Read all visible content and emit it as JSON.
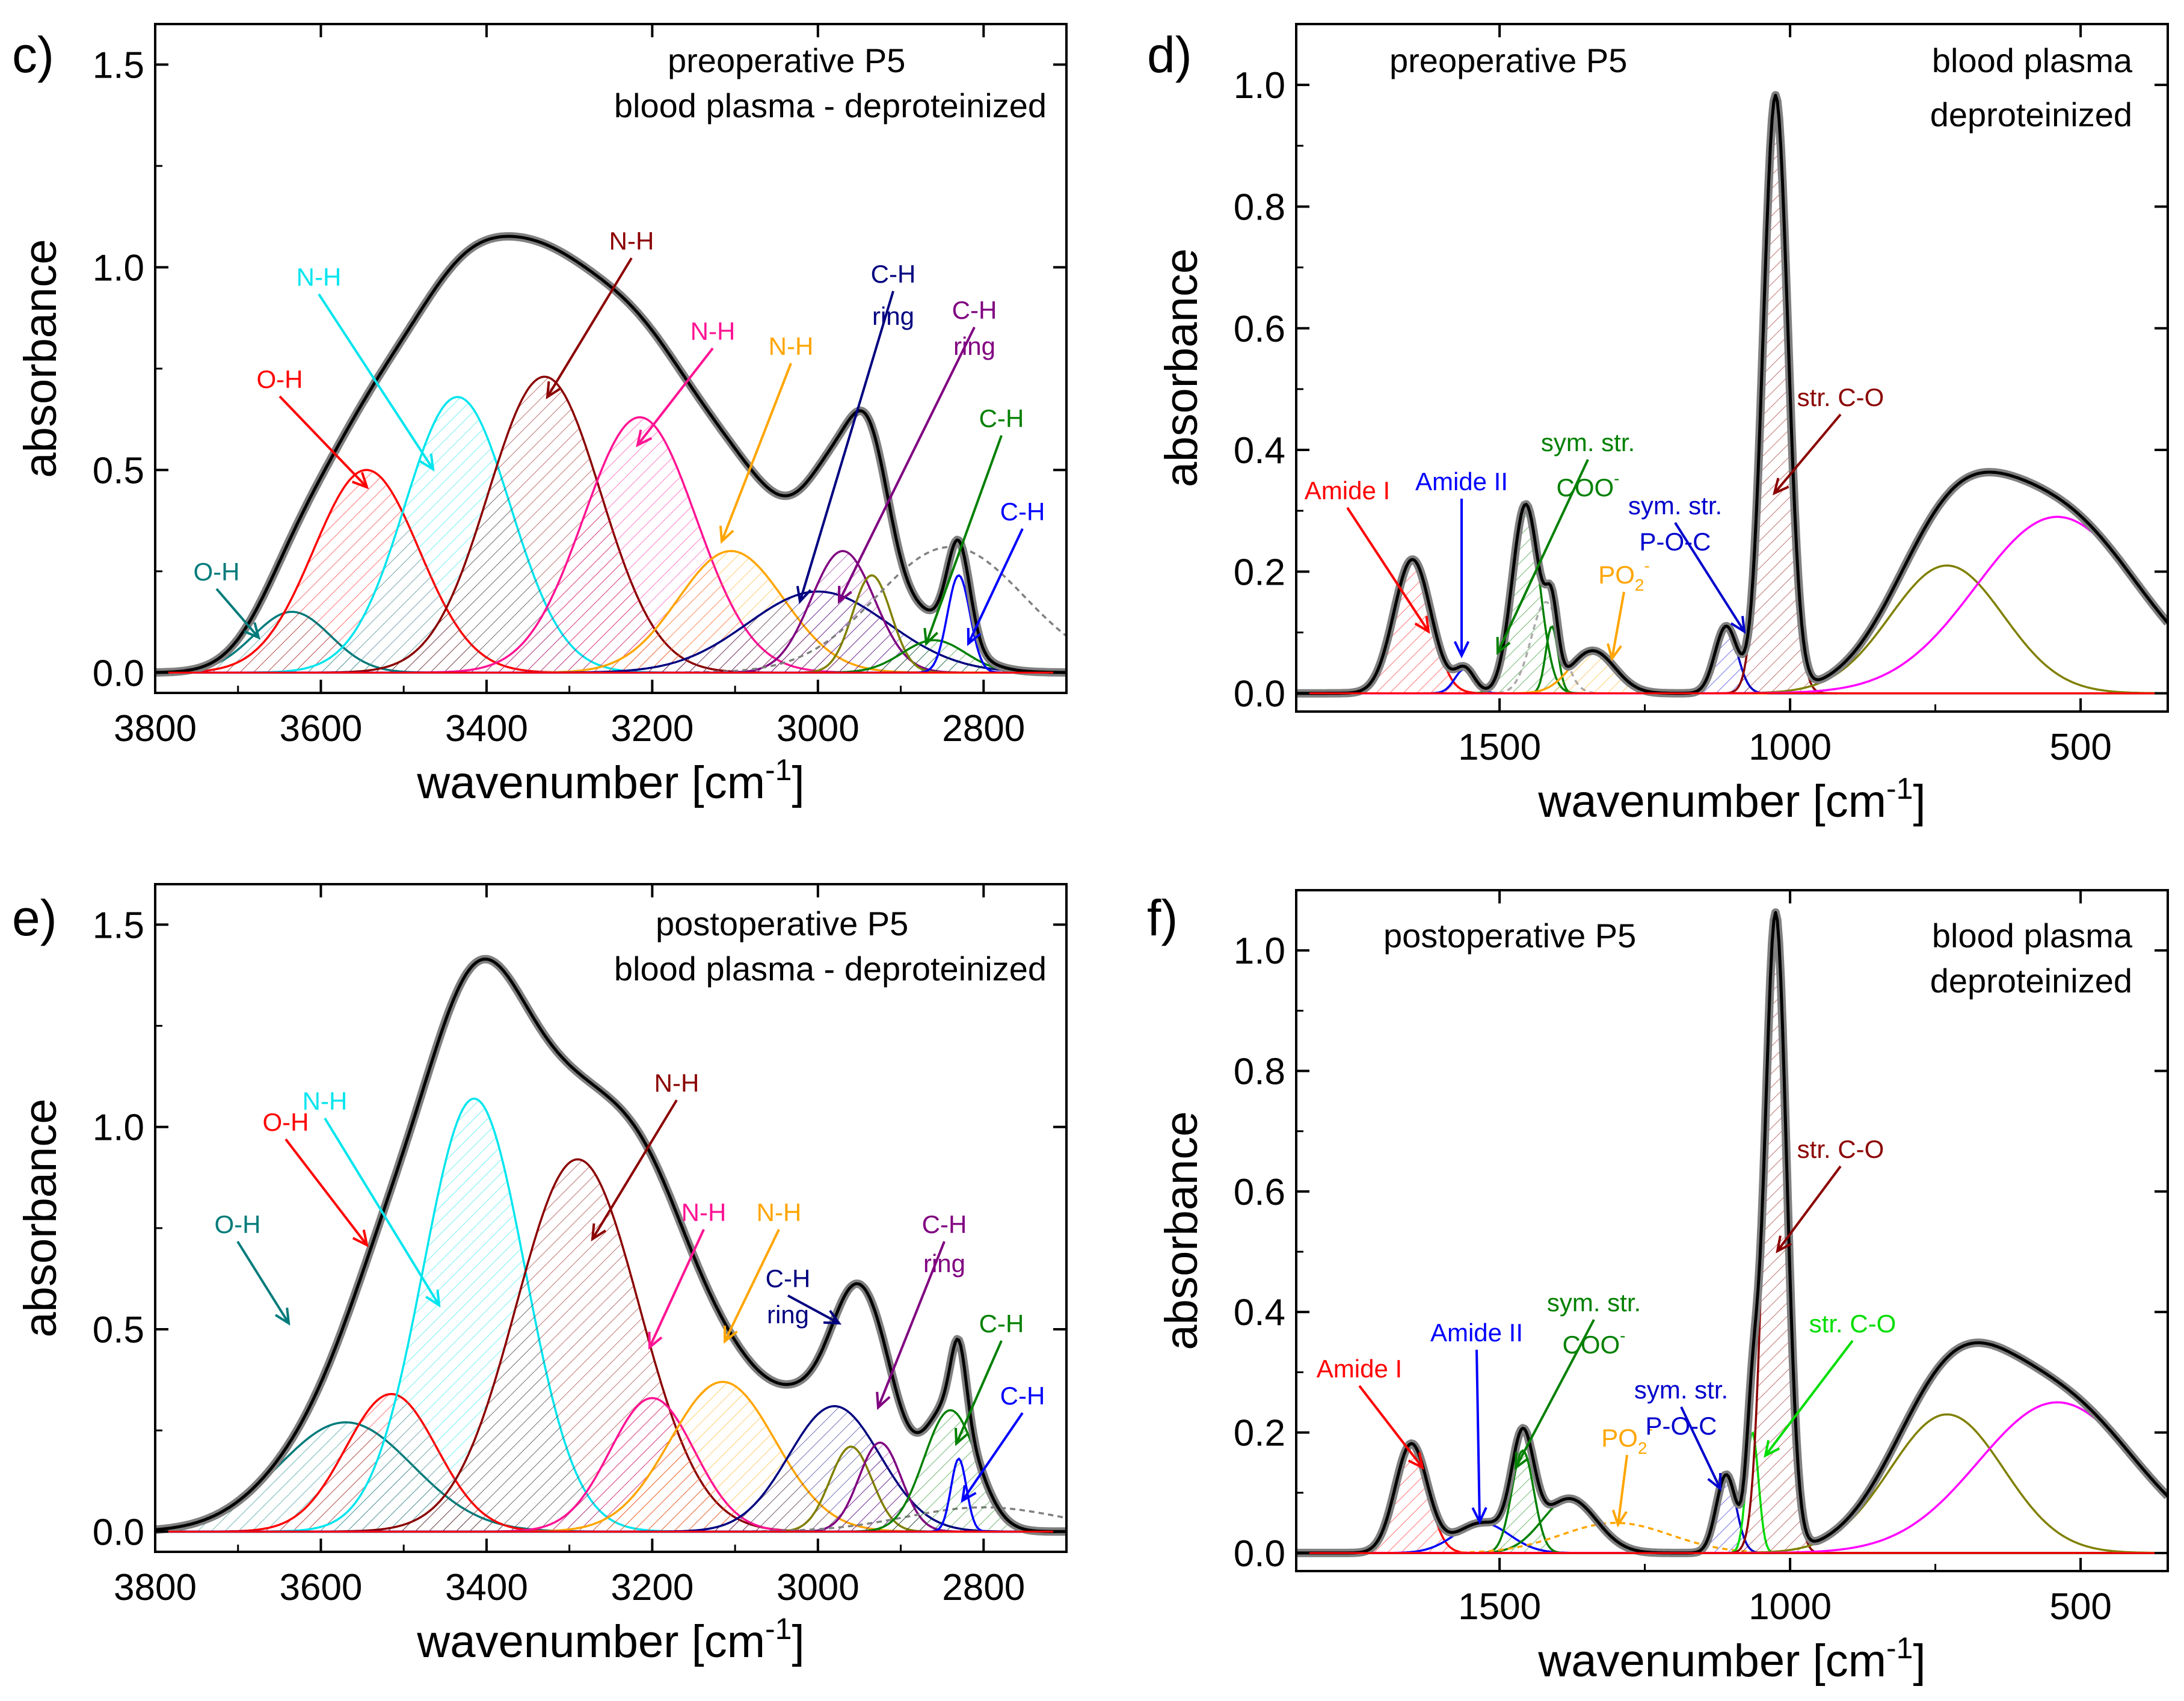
{
  "chart_data": [
    {
      "type": "line",
      "panel_label": "c)",
      "title": "preoperative P5",
      "subtitle": "blood plasma - deproteinized",
      "xlabel": "wavenumber [cm",
      "xlabel_sup": "-1",
      "xlabel_end": "]",
      "ylabel": "absorbance",
      "xlim": [
        3800,
        2700
      ],
      "ylim": [
        -0.05,
        1.6
      ],
      "xticks": [
        3800,
        3600,
        3400,
        3200,
        3000,
        2800
      ],
      "xtick_labels": [
        "3800",
        "3600",
        "3400",
        "3200",
        "3000",
        "2800"
      ],
      "yticks": [
        0.0,
        0.5,
        1.0,
        1.5
      ],
      "ytick_labels": [
        "0.0",
        "0.5",
        "1.0",
        "1.5"
      ],
      "series": [
        {
          "name": "O-H",
          "color": "#007b7b",
          "center": 3635,
          "height": 0.15,
          "fwhm": 110,
          "hatch": true
        },
        {
          "name": "O-H",
          "color": "#ff0000",
          "center": 3545,
          "height": 0.5,
          "fwhm": 150,
          "hatch": true
        },
        {
          "name": "N-H",
          "color": "#00e5ee",
          "center": 3435,
          "height": 0.68,
          "fwhm": 150,
          "hatch": true
        },
        {
          "name": "N-H",
          "color": "#8b0000",
          "center": 3330,
          "height": 0.73,
          "fwhm": 160,
          "hatch": true
        },
        {
          "name": "N-H",
          "color": "#ff1493",
          "center": 3215,
          "height": 0.63,
          "fwhm": 160,
          "hatch": true
        },
        {
          "name": "N-H",
          "color": "#ffa500",
          "center": 3105,
          "height": 0.3,
          "fwhm": 150,
          "hatch": true
        },
        {
          "name": "C-H ring",
          "color": "#000080",
          "center": 3000,
          "height": 0.2,
          "fwhm": 200,
          "hatch": true
        },
        {
          "name": "C-H ring",
          "color": "#800080",
          "center": 2970,
          "height": 0.3,
          "fwhm": 90,
          "hatch": true
        },
        {
          "name": "",
          "color": "#808000",
          "center": 2935,
          "height": 0.24,
          "fwhm": 55,
          "hatch": false
        },
        {
          "name": "",
          "color": "#808080",
          "center": 2840,
          "height": 0.31,
          "fwhm": 210,
          "hatch": false,
          "dashed": true
        },
        {
          "name": "C-H",
          "color": "#008000",
          "center": 2860,
          "height": 0.08,
          "fwhm": 90,
          "hatch": true
        },
        {
          "name": "C-H",
          "color": "#0000ff",
          "center": 2830,
          "height": 0.24,
          "fwhm": 32,
          "hatch": false
        }
      ],
      "annotations": [
        {
          "text": "O-H",
          "color": "#007b7b"
        },
        {
          "text": "O-H",
          "color": "#ff0000"
        },
        {
          "text": "N-H",
          "color": "#00e5ee"
        },
        {
          "text": "N-H",
          "color": "#8b0000"
        },
        {
          "text": "N-H",
          "color": "#ff1493"
        },
        {
          "text": "N-H",
          "color": "#ffa500"
        },
        {
          "text": "C-H",
          "color": "#000080"
        },
        {
          "text": "ring",
          "color": "#000080"
        },
        {
          "text": "C-H",
          "color": "#800080"
        },
        {
          "text": "ring",
          "color": "#800080"
        },
        {
          "text": "C-H",
          "color": "#008000"
        },
        {
          "text": "C-H",
          "color": "#0000ff"
        }
      ]
    },
    {
      "type": "line",
      "panel_label": "d)",
      "title": "preoperative P5",
      "subtitle": "blood plasma",
      "subtitle2": "deproteinized",
      "xlabel": "wavenumber [cm",
      "xlabel_sup": "-1",
      "xlabel_end": "]",
      "ylabel": "absorbance",
      "xlim": [
        1850,
        350
      ],
      "ylim": [
        -0.03,
        1.1
      ],
      "xticks": [
        1500,
        1000,
        500
      ],
      "xtick_labels": [
        "1500",
        "1000",
        "500"
      ],
      "yticks": [
        0.0,
        0.2,
        0.4,
        0.6,
        0.8,
        1.0
      ],
      "ytick_labels": [
        "0.0",
        "0.2",
        "0.4",
        "0.6",
        "0.8",
        "1.0"
      ],
      "series": [
        {
          "name": "Amide I",
          "color": "#ff0000",
          "center": 1650,
          "height": 0.22,
          "fwhm": 75,
          "hatch": true
        },
        {
          "name": "Amide II",
          "color": "#0000ff",
          "center": 1560,
          "height": 0.04,
          "fwhm": 40,
          "hatch": false
        },
        {
          "name": "sym. str. COO-",
          "color": "#008000",
          "center": 1455,
          "height": 0.31,
          "fwhm": 55,
          "hatch": true
        },
        {
          "name": "",
          "color": "#008000",
          "center": 1410,
          "height": 0.11,
          "fwhm": 25,
          "hatch": false
        },
        {
          "name": "",
          "color": "#aaaaaa",
          "center": 1420,
          "height": 0.15,
          "fwhm": 60,
          "hatch": false,
          "dashed": true
        },
        {
          "name": "PO2-",
          "color": "#ffa500",
          "center": 1340,
          "height": 0.07,
          "fwhm": 90,
          "hatch": true
        },
        {
          "name": "sym. str. P-O-C",
          "color": "#0000cd",
          "center": 1110,
          "height": 0.11,
          "fwhm": 45,
          "hatch": true
        },
        {
          "name": "str. C-O",
          "color": "#8b0000",
          "center": 1025,
          "height": 0.98,
          "fwhm": 50,
          "hatch": true
        },
        {
          "name": "",
          "color": "#808000",
          "center": 730,
          "height": 0.21,
          "fwhm": 230,
          "hatch": false
        },
        {
          "name": "",
          "color": "#ff00ff",
          "center": 540,
          "height": 0.29,
          "fwhm": 330,
          "hatch": false
        }
      ],
      "annotations": [
        {
          "text": "Amide I",
          "color": "#ff0000"
        },
        {
          "text": "Amide II",
          "color": "#0000ff"
        },
        {
          "text": "sym. str.",
          "color": "#008000"
        },
        {
          "text": "COO",
          "color": "#008000",
          "sup": "-"
        },
        {
          "text": "PO",
          "color": "#ffa500",
          "sub": "2",
          "sup": "-"
        },
        {
          "text": "sym. str.",
          "color": "#0000cd"
        },
        {
          "text": "P-O-C",
          "color": "#0000cd"
        },
        {
          "text": "str. C-O",
          "color": "#8b0000"
        }
      ]
    },
    {
      "type": "line",
      "panel_label": "e)",
      "title": "postoperative P5",
      "subtitle": "blood plasma - deproteinized",
      "xlabel": "wavenumber [cm",
      "xlabel_sup": "-1",
      "xlabel_end": "]",
      "ylabel": "absorbance",
      "xlim": [
        3800,
        2700
      ],
      "ylim": [
        -0.05,
        1.6
      ],
      "xticks": [
        3800,
        3600,
        3400,
        3200,
        3000,
        2800
      ],
      "xtick_labels": [
        "3800",
        "3600",
        "3400",
        "3200",
        "3000",
        "2800"
      ],
      "yticks": [
        0.0,
        0.5,
        1.0,
        1.5
      ],
      "ytick_labels": [
        "0.0",
        "0.5",
        "1.0",
        "1.5"
      ],
      "series": [
        {
          "name": "O-H",
          "color": "#007b7b",
          "center": 3570,
          "height": 0.27,
          "fwhm": 190,
          "hatch": true
        },
        {
          "name": "O-H",
          "color": "#ff0000",
          "center": 3515,
          "height": 0.34,
          "fwhm": 130,
          "hatch": true
        },
        {
          "name": "N-H",
          "color": "#00e5ee",
          "center": 3415,
          "height": 1.07,
          "fwhm": 145,
          "hatch": true
        },
        {
          "name": "N-H",
          "color": "#8b0000",
          "center": 3290,
          "height": 0.92,
          "fwhm": 175,
          "hatch": true
        },
        {
          "name": "N-H",
          "color": "#ff1493",
          "center": 3200,
          "height": 0.33,
          "fwhm": 120,
          "hatch": true
        },
        {
          "name": "N-H",
          "color": "#ffa500",
          "center": 3115,
          "height": 0.37,
          "fwhm": 150,
          "hatch": true
        },
        {
          "name": "C-H ring",
          "color": "#000080",
          "center": 2980,
          "height": 0.31,
          "fwhm": 130,
          "hatch": true
        },
        {
          "name": "",
          "color": "#808000",
          "center": 2960,
          "height": 0.21,
          "fwhm": 60,
          "hatch": false
        },
        {
          "name": "C-H ring",
          "color": "#800080",
          "center": 2925,
          "height": 0.22,
          "fwhm": 60,
          "hatch": true
        },
        {
          "name": "",
          "color": "#808080",
          "center": 2800,
          "height": 0.06,
          "fwhm": 220,
          "hatch": false,
          "dashed": true
        },
        {
          "name": "C-H",
          "color": "#008000",
          "center": 2840,
          "height": 0.3,
          "fwhm": 75,
          "hatch": true
        },
        {
          "name": "C-H",
          "color": "#0000ff",
          "center": 2830,
          "height": 0.18,
          "fwhm": 22,
          "hatch": false
        }
      ],
      "annotations": [
        {
          "text": "O-H",
          "color": "#007b7b"
        },
        {
          "text": "O-H",
          "color": "#ff0000"
        },
        {
          "text": "N-H",
          "color": "#00e5ee"
        },
        {
          "text": "N-H",
          "color": "#8b0000"
        },
        {
          "text": "N-H",
          "color": "#ff1493"
        },
        {
          "text": "N-H",
          "color": "#ffa500"
        },
        {
          "text": "C-H",
          "color": "#000080"
        },
        {
          "text": "ring",
          "color": "#000080"
        },
        {
          "text": "C-H",
          "color": "#800080"
        },
        {
          "text": "ring",
          "color": "#800080"
        },
        {
          "text": "C-H",
          "color": "#008000"
        },
        {
          "text": "C-H",
          "color": "#0000ff"
        }
      ]
    },
    {
      "type": "line",
      "panel_label": "f)",
      "title": "postoperative P5",
      "subtitle": "blood plasma",
      "subtitle2": "deproteinized",
      "xlabel": "wavenumber [cm",
      "xlabel_sup": "-1",
      "xlabel_end": "]",
      "ylabel": "absorbance",
      "xlim": [
        1850,
        350
      ],
      "ylim": [
        -0.03,
        1.1
      ],
      "xticks": [
        1500,
        1000,
        500
      ],
      "xtick_labels": [
        "1500",
        "1000",
        "500"
      ],
      "yticks": [
        0.0,
        0.2,
        0.4,
        0.6,
        0.8,
        1.0
      ],
      "ytick_labels": [
        "0.0",
        "0.2",
        "0.4",
        "0.6",
        "0.8",
        "1.0"
      ],
      "series": [
        {
          "name": "Amide I",
          "color": "#ff0000",
          "center": 1652,
          "height": 0.18,
          "fwhm": 65,
          "hatch": true
        },
        {
          "name": "Amide II",
          "color": "#0000ff",
          "center": 1530,
          "height": 0.05,
          "fwhm": 110,
          "hatch": false
        },
        {
          "name": "sym. str. COO-",
          "color": "#008000",
          "center": 1460,
          "height": 0.17,
          "fwhm": 45,
          "hatch": true
        },
        {
          "name": "",
          "color": "#008000",
          "center": 1380,
          "height": 0.09,
          "fwhm": 110,
          "hatch": false
        },
        {
          "name": "PO2-",
          "color": "#ffa500",
          "center": 1300,
          "height": 0.05,
          "fwhm": 220,
          "hatch": false,
          "dashed": true
        },
        {
          "name": "sym. str. P-O-C",
          "color": "#0000cd",
          "center": 1110,
          "height": 0.13,
          "fwhm": 40,
          "hatch": true
        },
        {
          "name": "str. C-O",
          "color": "#00dd00",
          "center": 1065,
          "height": 0.2,
          "fwhm": 25,
          "hatch": false
        },
        {
          "name": "str. C-O",
          "color": "#8b0000",
          "center": 1025,
          "height": 1.06,
          "fwhm": 45,
          "hatch": true
        },
        {
          "name": "",
          "color": "#808000",
          "center": 730,
          "height": 0.23,
          "fwhm": 230,
          "hatch": false
        },
        {
          "name": "",
          "color": "#ff00ff",
          "center": 540,
          "height": 0.25,
          "fwhm": 320,
          "hatch": false
        }
      ],
      "annotations": [
        {
          "text": "Amide I",
          "color": "#ff0000"
        },
        {
          "text": "Amide II",
          "color": "#0000ff"
        },
        {
          "text": "sym. str.",
          "color": "#008000"
        },
        {
          "text": "COO",
          "color": "#008000",
          "sup": "-"
        },
        {
          "text": "PO",
          "color": "#ffa500",
          "sub": "2",
          "sup": "-"
        },
        {
          "text": "sym. str.",
          "color": "#0000cd"
        },
        {
          "text": "P-O-C",
          "color": "#0000cd"
        },
        {
          "text": "str. C-O",
          "color": "#8b0000"
        },
        {
          "text": "str. C-O",
          "color": "#00dd00"
        }
      ]
    }
  ]
}
